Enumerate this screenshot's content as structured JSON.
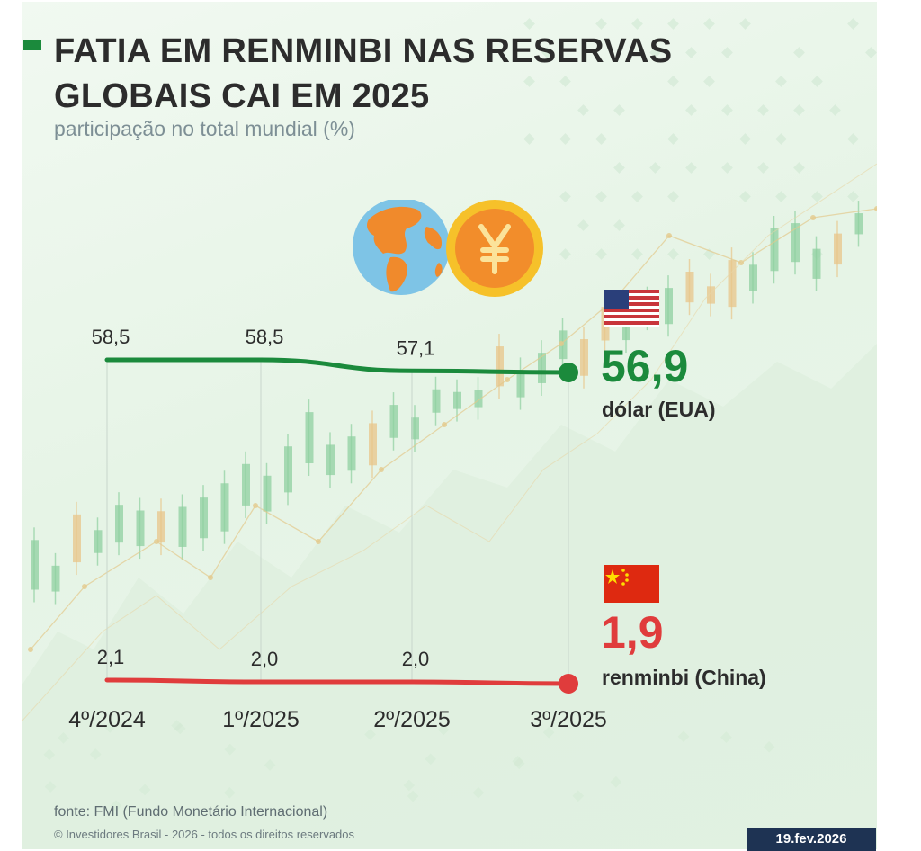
{
  "header": {
    "title": "FATIA EM RENMINBI NAS RESERVAS GLOBAIS CAI EM 2025",
    "subtitle": "participação no total mundial (%)"
  },
  "chart_data": {
    "type": "line",
    "title": "FATIA EM RENMINBI NAS RESERVAS GLOBAIS CAI EM 2025",
    "subtitle": "participação no total mundial (%)",
    "categories": [
      "4º/2024",
      "1º/2025",
      "2º/2025",
      "3º/2025"
    ],
    "series": [
      {
        "name": "dólar (EUA)",
        "values": [
          58.5,
          58.5,
          57.1,
          56.9
        ],
        "labels": [
          "58,5",
          "58,5",
          "57,1",
          "56,9"
        ],
        "color": "#1b8a3c"
      },
      {
        "name": "renminbi (China)",
        "values": [
          2.1,
          2.0,
          2.0,
          1.9
        ],
        "labels": [
          "2,1",
          "2,0",
          "2,0",
          "1,9"
        ],
        "color": "#e03c3c"
      }
    ],
    "legend": "right",
    "grid": false
  },
  "footer": {
    "source": "fonte: FMI (Fundo Monetário Internacional)",
    "copyright": "© Investidores Brasil - 2026 - todos os direitos reservados",
    "date": "19.fev.2026"
  },
  "colors": {
    "usd": "#1b8a3c",
    "cny": "#e03c3c",
    "badge": "#1e3353"
  },
  "icons": [
    "globe-icon",
    "yuan-coin-icon",
    "us-flag-icon",
    "china-flag-icon"
  ]
}
